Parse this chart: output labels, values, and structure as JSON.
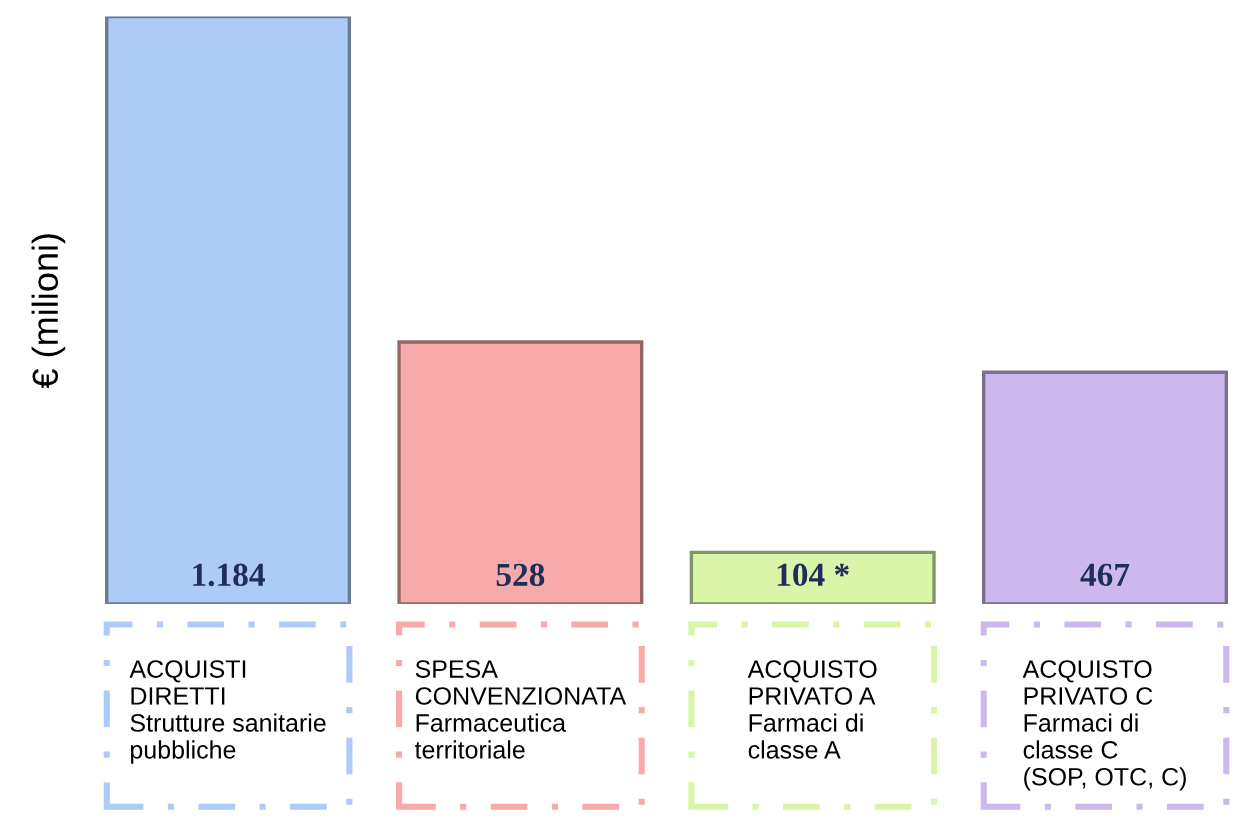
{
  "chart_data": {
    "type": "bar",
    "ylabel": "€ (milioni)",
    "relative": false,
    "categories": [
      "ACQUISTI\nDIRETTI\nStrutture sanitarie\npubbliche",
      "SPESA\nCONVENZIONATA\nFarmaceutica\nterritoriale",
      "ACQUISTO\nPRIVATO A\nFarmaci di\nclasse A",
      "ACQUISTO\nPRIVATO C\nFarmaci di\nclasse C\n(SOP, OTC, C)"
    ],
    "values": [
      1184,
      528,
      104,
      467
    ],
    "value_labels": [
      "1.184",
      "528",
      "104 *",
      "467"
    ],
    "colors": [
      "#aecbf7",
      "#f8aaaa",
      "#d8f5a8",
      "#cdb8ee"
    ],
    "grid": false,
    "legend": false
  }
}
